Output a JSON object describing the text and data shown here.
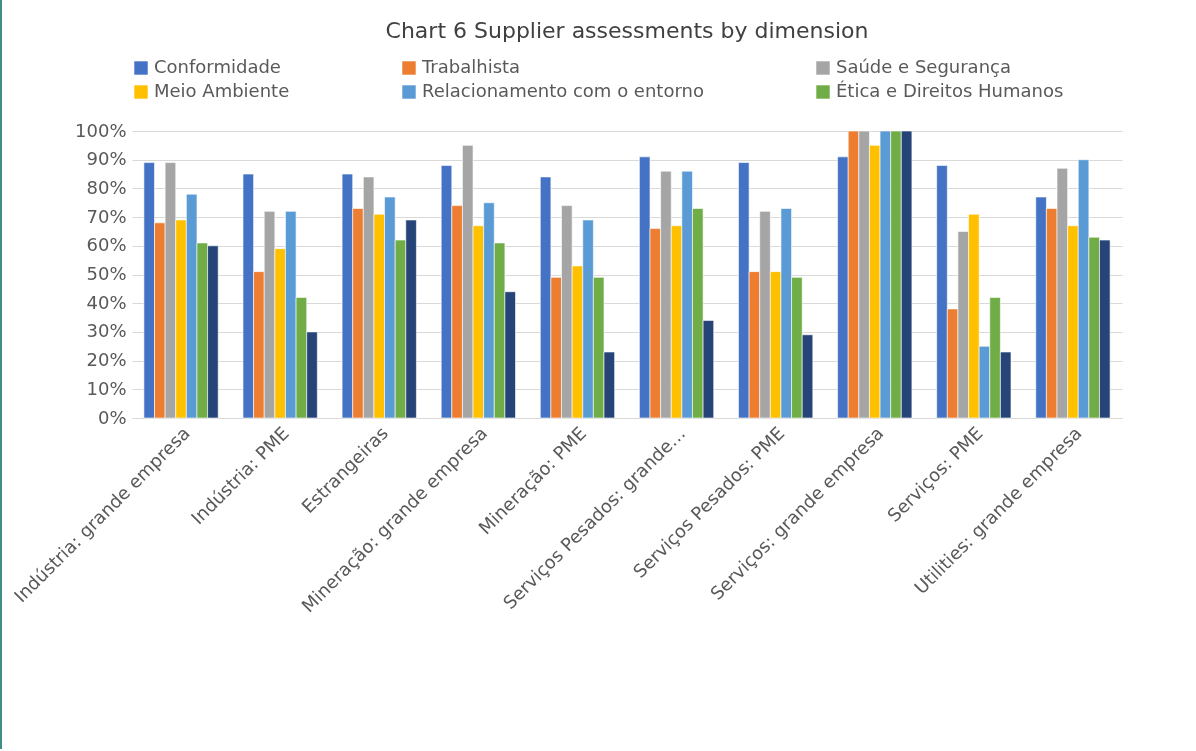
{
  "chart_data": {
    "type": "bar",
    "title": "Chart 6 Supplier assessments by dimension",
    "categories": [
      "Indústria: grande empresa",
      "Indústria: PME",
      "Estrangeiras",
      "Mineração: grande empresa",
      "Mineração: PME",
      "Serviços Pesados: grande…",
      "Serviços Pesados: PME",
      "Serviços: grande empresa",
      "Serviços: PME",
      "Utilities: grande empresa"
    ],
    "series": [
      {
        "name": "Conformidade",
        "color": "#4472c4",
        "values": [
          89,
          85,
          85,
          88,
          84,
          91,
          89,
          91,
          88,
          77
        ]
      },
      {
        "name": "Trabalhista",
        "color": "#ed7d31",
        "values": [
          68,
          51,
          73,
          74,
          49,
          66,
          51,
          100,
          38,
          73
        ]
      },
      {
        "name": "Saúde e Segurança",
        "color": "#a5a5a5",
        "values": [
          89,
          72,
          84,
          95,
          74,
          86,
          72,
          100,
          65,
          87
        ]
      },
      {
        "name": "Meio Ambiente",
        "color": "#ffc000",
        "values": [
          69,
          59,
          71,
          67,
          53,
          67,
          51,
          95,
          71,
          67
        ]
      },
      {
        "name": "Relacionamento com o entorno",
        "color": "#5b9bd5",
        "values": [
          78,
          72,
          77,
          75,
          69,
          86,
          73,
          100,
          25,
          90
        ]
      },
      {
        "name": "Ética e Direitos Humanos",
        "color": "#70ad47",
        "values": [
          61,
          42,
          62,
          61,
          49,
          73,
          49,
          100,
          42,
          63
        ]
      },
      {
        "color": "#264478",
        "values": [
          60,
          30,
          69,
          44,
          23,
          34,
          29,
          100,
          23,
          62
        ]
      }
    ],
    "ylim": [
      0,
      100
    ],
    "yticks": [
      {
        "value": 0,
        "label": "0%"
      },
      {
        "value": 10,
        "label": "10%"
      },
      {
        "value": 20,
        "label": "20%"
      },
      {
        "value": 30,
        "label": "30%"
      },
      {
        "value": 40,
        "label": "40%"
      },
      {
        "value": 50,
        "label": "50%"
      },
      {
        "value": 60,
        "label": "60%"
      },
      {
        "value": 70,
        "label": "70%"
      },
      {
        "value": 80,
        "label": "80%"
      },
      {
        "value": 90,
        "label": "90%"
      },
      {
        "value": 100,
        "label": "100%"
      }
    ],
    "grid": "y",
    "legend": "top"
  }
}
